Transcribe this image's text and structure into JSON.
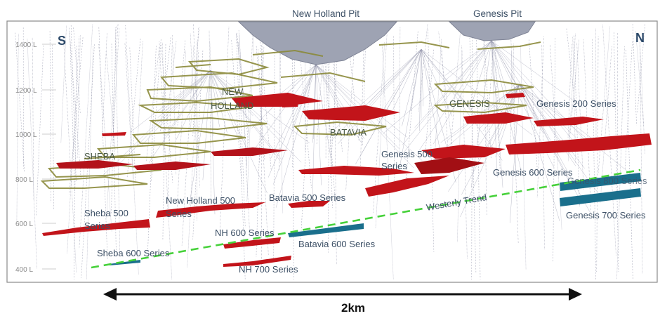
{
  "pits": {
    "new_holland": "New Holland Pit",
    "genesis": "Genesis Pit"
  },
  "compass": {
    "south": "S",
    "north": "N"
  },
  "elevation_labels": [
    "1400 L",
    "1200 L",
    "1000 L",
    "800 L",
    "600 L",
    "400 L"
  ],
  "deposits": {
    "sheba": "SHEBA",
    "new_holland_line1": "NEW",
    "new_holland_line2": "HOLLAND",
    "batavia": "BATAVIA",
    "genesis": "GENESIS"
  },
  "series_labels": {
    "genesis_200": "Genesis 200 Series",
    "genesis_500_line1": "Genesis 500",
    "genesis_500_line2": "Series",
    "genesis_600": "Genesis 600 Series",
    "genesis_800": "Genesis 800 Series",
    "genesis_700": "Genesis 700 Series",
    "new_holland_500_line1": "New Holland 500",
    "new_holland_500_line2": "Series",
    "batavia_500": "Batavia 500 Series",
    "sheba_500_line1": "Sheba 500",
    "sheba_500_line2": "Series",
    "nh_600": "NH 600 Series",
    "batavia_600": "Batavia 600 Series",
    "sheba_600": "Sheba 600 Series",
    "nh_700": "NH 700 Series"
  },
  "trend_label": "Westerly Trend",
  "scale_bar": {
    "label": "2km"
  },
  "colors": {
    "frame": "#8a8a8a",
    "pit": "#9ea3b3",
    "drillhole": "#8d8fa6",
    "development": "#8b8a3a",
    "ore": "#c2141a",
    "ore_dark": "#8e0c10",
    "teal": "#1a6f8c",
    "trend": "#46d13a",
    "label": "#3d5066",
    "deposit_label": "#4a5a46",
    "arrow": "#111111"
  }
}
